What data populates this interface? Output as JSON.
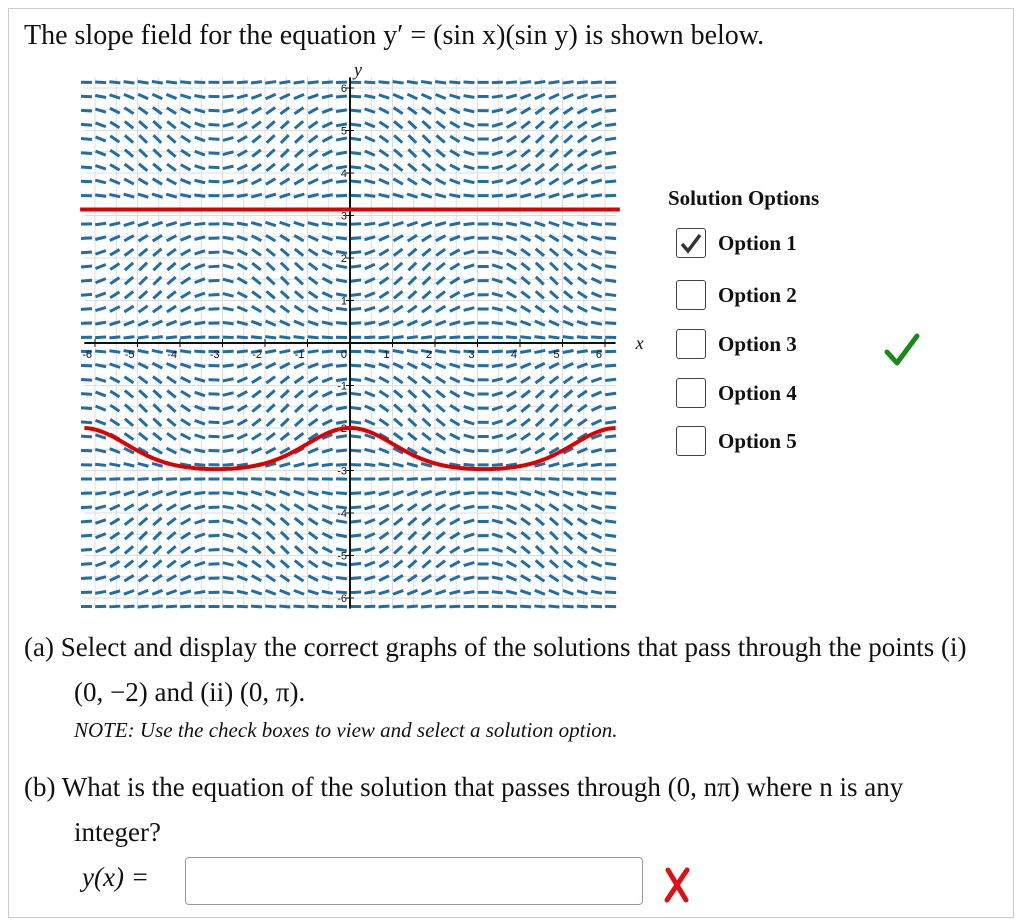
{
  "header": {
    "title": "The slope field for the equation y′ = (sin x)(sin y) is shown below."
  },
  "graph": {
    "x_label": "x",
    "y_label": "y",
    "xticks": [
      -6,
      -5,
      -4,
      -3,
      -2,
      -1,
      0,
      1,
      2,
      3,
      4,
      5,
      6
    ],
    "yticks": [
      -6,
      -5,
      -4,
      -3,
      -2,
      -1,
      1,
      2,
      3,
      4,
      5,
      6
    ]
  },
  "options": {
    "title": "Solution Options",
    "items": [
      {
        "label": "Option 1",
        "checked": true
      },
      {
        "label": "Option 2",
        "checked": false
      },
      {
        "label": "Option 3",
        "checked": false
      },
      {
        "label": "Option 4",
        "checked": false
      },
      {
        "label": "Option 5",
        "checked": false
      }
    ]
  },
  "part_a": {
    "label": "(a)",
    "text": "Select and display the correct graphs of the solutions that pass through the points (i) (0, −2)  and (ii) (0, π).",
    "note": "NOTE: Use the check boxes to view and select a solution option."
  },
  "part_b": {
    "label": "(b)",
    "text": "What is the equation of the solution that passes through (0, nπ) where n is any integer?",
    "answer_label": "y(x) ="
  }
}
